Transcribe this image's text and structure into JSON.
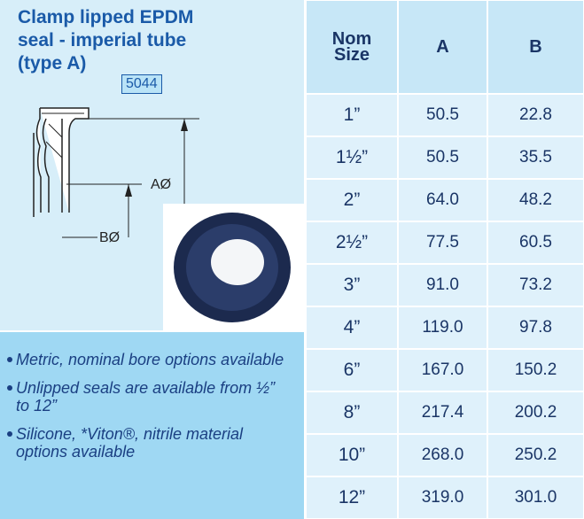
{
  "header": {
    "title_lines": [
      "Clamp lipped EPDM",
      "seal - imperial tube",
      "(type A)"
    ],
    "code": "5044"
  },
  "diagram": {
    "a_label": "AØ",
    "b_label": "BØ"
  },
  "notes": [
    "Metric, nominal bore options available",
    "Unlipped seals are available from ½” to 12”",
    "Silicone, *Viton®, nitrile material options available"
  ],
  "table": {
    "columns": [
      "Nom Size",
      "A",
      "B"
    ],
    "rows": [
      [
        "1”",
        "50.5",
        "22.8"
      ],
      [
        "1½”",
        "50.5",
        "35.5"
      ],
      [
        "2”",
        "64.0",
        "48.2"
      ],
      [
        "2½”",
        "77.5",
        "60.5"
      ],
      [
        "3”",
        "91.0",
        "73.2"
      ],
      [
        "4”",
        "119.0",
        "97.8"
      ],
      [
        "6”",
        "167.0",
        "150.2"
      ],
      [
        "8”",
        "217.4",
        "200.2"
      ],
      [
        "10”",
        "268.0",
        "250.2"
      ],
      [
        "12”",
        "319.0",
        "301.0"
      ]
    ]
  }
}
